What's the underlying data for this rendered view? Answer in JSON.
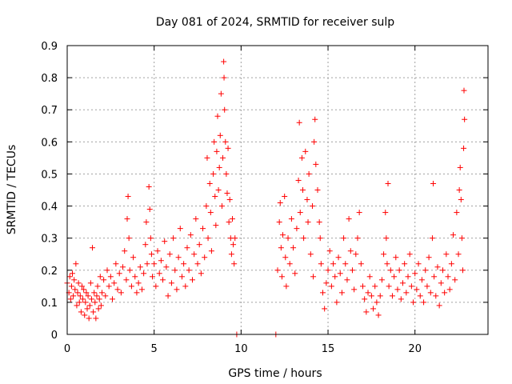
{
  "chart_data": {
    "type": "scatter",
    "title": "Day 081 of 2024, SRMTID for receiver sulp",
    "xlabel": "GPS time / hours",
    "ylabel": "SRMTID / TECUs",
    "xlim": [
      0,
      24.2
    ],
    "ylim": [
      0,
      0.9
    ],
    "xticks": [
      0,
      5,
      10,
      15,
      20
    ],
    "xtick_labels": [
      "0",
      "5",
      "10",
      "15",
      "20"
    ],
    "yticks": [
      0,
      0.1,
      0.2,
      0.3,
      0.4,
      0.5,
      0.6,
      0.7,
      0.8,
      0.9
    ],
    "ytick_labels": [
      "0",
      "0.1",
      "0.2",
      "0.3",
      "0.4",
      "0.5",
      "0.6",
      "0.7",
      "0.8",
      "0.9"
    ],
    "grid": true,
    "marker": "+",
    "color": "#ff0000",
    "series": [
      {
        "name": "SRMTID",
        "points": [
          [
            0.0,
            0.16
          ],
          [
            0.1,
            0.13
          ],
          [
            0.15,
            0.18
          ],
          [
            0.2,
            0.11
          ],
          [
            0.25,
            0.15
          ],
          [
            0.3,
            0.19
          ],
          [
            0.35,
            0.12
          ],
          [
            0.4,
            0.17
          ],
          [
            0.45,
            0.14
          ],
          [
            0.5,
            0.22
          ],
          [
            0.55,
            0.09
          ],
          [
            0.6,
            0.13
          ],
          [
            0.65,
            0.16
          ],
          [
            0.7,
            0.1
          ],
          [
            0.75,
            0.12
          ],
          [
            0.8,
            0.07
          ],
          [
            0.85,
            0.15
          ],
          [
            0.9,
            0.11
          ],
          [
            0.95,
            0.14
          ],
          [
            1.0,
            0.06
          ],
          [
            1.05,
            0.1
          ],
          [
            1.1,
            0.13
          ],
          [
            1.15,
            0.08
          ],
          [
            1.2,
            0.12
          ],
          [
            1.25,
            0.05
          ],
          [
            1.3,
            0.09
          ],
          [
            1.35,
            0.16
          ],
          [
            1.4,
            0.11
          ],
          [
            1.45,
            0.27
          ],
          [
            1.5,
            0.07
          ],
          [
            1.55,
            0.13
          ],
          [
            1.6,
            0.1
          ],
          [
            1.65,
            0.05
          ],
          [
            1.7,
            0.12
          ],
          [
            1.75,
            0.15
          ],
          [
            1.8,
            0.08
          ],
          [
            1.85,
            0.11
          ],
          [
            1.9,
            0.18
          ],
          [
            1.95,
            0.09
          ],
          [
            2.0,
            0.13
          ],
          [
            2.1,
            0.17
          ],
          [
            2.2,
            0.12
          ],
          [
            2.3,
            0.2
          ],
          [
            2.4,
            0.15
          ],
          [
            2.5,
            0.18
          ],
          [
            2.6,
            0.11
          ],
          [
            2.7,
            0.16
          ],
          [
            2.8,
            0.22
          ],
          [
            2.9,
            0.14
          ],
          [
            3.0,
            0.19
          ],
          [
            3.1,
            0.13
          ],
          [
            3.2,
            0.21
          ],
          [
            3.3,
            0.26
          ],
          [
            3.4,
            0.17
          ],
          [
            3.45,
            0.36
          ],
          [
            3.5,
            0.43
          ],
          [
            3.55,
            0.3
          ],
          [
            3.6,
            0.2
          ],
          [
            3.7,
            0.15
          ],
          [
            3.8,
            0.24
          ],
          [
            3.9,
            0.18
          ],
          [
            4.0,
            0.13
          ],
          [
            4.1,
            0.16
          ],
          [
            4.2,
            0.21
          ],
          [
            4.3,
            0.14
          ],
          [
            4.4,
            0.19
          ],
          [
            4.5,
            0.28
          ],
          [
            4.55,
            0.35
          ],
          [
            4.6,
            0.22
          ],
          [
            4.7,
            0.46
          ],
          [
            4.75,
            0.39
          ],
          [
            4.8,
            0.3
          ],
          [
            4.85,
            0.25
          ],
          [
            4.9,
            0.18
          ],
          [
            5.0,
            0.22
          ],
          [
            5.1,
            0.15
          ],
          [
            5.2,
            0.26
          ],
          [
            5.3,
            0.19
          ],
          [
            5.4,
            0.23
          ],
          [
            5.5,
            0.17
          ],
          [
            5.6,
            0.29
          ],
          [
            5.7,
            0.21
          ],
          [
            5.8,
            0.12
          ],
          [
            5.9,
            0.25
          ],
          [
            6.0,
            0.16
          ],
          [
            6.1,
            0.3
          ],
          [
            6.2,
            0.2
          ],
          [
            6.3,
            0.14
          ],
          [
            6.4,
            0.24
          ],
          [
            6.5,
            0.33
          ],
          [
            6.6,
            0.18
          ],
          [
            6.7,
            0.22
          ],
          [
            6.8,
            0.15
          ],
          [
            6.9,
            0.27
          ],
          [
            7.0,
            0.2
          ],
          [
            7.1,
            0.31
          ],
          [
            7.2,
            0.17
          ],
          [
            7.3,
            0.25
          ],
          [
            7.4,
            0.36
          ],
          [
            7.5,
            0.22
          ],
          [
            7.6,
            0.28
          ],
          [
            7.7,
            0.19
          ],
          [
            7.8,
            0.33
          ],
          [
            7.9,
            0.24
          ],
          [
            8.0,
            0.4
          ],
          [
            8.05,
            0.55
          ],
          [
            8.1,
            0.3
          ],
          [
            8.2,
            0.47
          ],
          [
            8.25,
            0.38
          ],
          [
            8.3,
            0.26
          ],
          [
            8.4,
            0.5
          ],
          [
            8.45,
            0.6
          ],
          [
            8.5,
            0.43
          ],
          [
            8.55,
            0.34
          ],
          [
            8.6,
            0.57
          ],
          [
            8.65,
            0.68
          ],
          [
            8.7,
            0.45
          ],
          [
            8.75,
            0.52
          ],
          [
            8.8,
            0.62
          ],
          [
            8.85,
            0.75
          ],
          [
            8.9,
            0.4
          ],
          [
            8.95,
            0.55
          ],
          [
            9.0,
            0.85
          ],
          [
            9.02,
            0.8
          ],
          [
            9.05,
            0.7
          ],
          [
            9.1,
            0.6
          ],
          [
            9.15,
            0.5
          ],
          [
            9.2,
            0.44
          ],
          [
            9.25,
            0.58
          ],
          [
            9.3,
            0.35
          ],
          [
            9.35,
            0.42
          ],
          [
            9.4,
            0.3
          ],
          [
            9.45,
            0.25
          ],
          [
            9.5,
            0.36
          ],
          [
            9.55,
            0.28
          ],
          [
            9.6,
            0.22
          ],
          [
            9.65,
            0.3
          ],
          [
            9.75,
            0.0
          ],
          [
            12.0,
            0.0
          ],
          [
            12.1,
            0.2
          ],
          [
            12.2,
            0.35
          ],
          [
            12.25,
            0.41
          ],
          [
            12.3,
            0.27
          ],
          [
            12.35,
            0.18
          ],
          [
            12.4,
            0.31
          ],
          [
            12.5,
            0.43
          ],
          [
            12.55,
            0.24
          ],
          [
            12.6,
            0.15
          ],
          [
            12.7,
            0.3
          ],
          [
            12.8,
            0.22
          ],
          [
            12.9,
            0.36
          ],
          [
            13.0,
            0.27
          ],
          [
            13.1,
            0.19
          ],
          [
            13.2,
            0.33
          ],
          [
            13.3,
            0.48
          ],
          [
            13.35,
            0.66
          ],
          [
            13.4,
            0.38
          ],
          [
            13.5,
            0.55
          ],
          [
            13.55,
            0.45
          ],
          [
            13.6,
            0.3
          ],
          [
            13.7,
            0.57
          ],
          [
            13.8,
            0.42
          ],
          [
            13.85,
            0.35
          ],
          [
            13.9,
            0.5
          ],
          [
            14.0,
            0.25
          ],
          [
            14.1,
            0.4
          ],
          [
            14.15,
            0.18
          ],
          [
            14.2,
            0.6
          ],
          [
            14.25,
            0.67
          ],
          [
            14.3,
            0.53
          ],
          [
            14.4,
            0.45
          ],
          [
            14.5,
            0.35
          ],
          [
            14.55,
            0.3
          ],
          [
            14.6,
            0.22
          ],
          [
            14.7,
            0.13
          ],
          [
            14.8,
            0.08
          ],
          [
            14.9,
            0.16
          ],
          [
            15.0,
            0.2
          ],
          [
            15.1,
            0.26
          ],
          [
            15.2,
            0.15
          ],
          [
            15.3,
            0.22
          ],
          [
            15.4,
            0.18
          ],
          [
            15.5,
            0.1
          ],
          [
            15.6,
            0.24
          ],
          [
            15.7,
            0.19
          ],
          [
            15.8,
            0.13
          ],
          [
            15.9,
            0.3
          ],
          [
            16.0,
            0.22
          ],
          [
            16.1,
            0.17
          ],
          [
            16.2,
            0.36
          ],
          [
            16.3,
            0.26
          ],
          [
            16.4,
            0.2
          ],
          [
            16.5,
            0.14
          ],
          [
            16.6,
            0.25
          ],
          [
            16.7,
            0.3
          ],
          [
            16.8,
            0.38
          ],
          [
            16.9,
            0.22
          ],
          [
            17.0,
            0.15
          ],
          [
            17.1,
            0.11
          ],
          [
            17.2,
            0.07
          ],
          [
            17.3,
            0.13
          ],
          [
            17.4,
            0.18
          ],
          [
            17.5,
            0.12
          ],
          [
            17.6,
            0.08
          ],
          [
            17.7,
            0.15
          ],
          [
            17.8,
            0.1
          ],
          [
            17.9,
            0.06
          ],
          [
            18.0,
            0.12
          ],
          [
            18.1,
            0.17
          ],
          [
            18.2,
            0.25
          ],
          [
            18.3,
            0.38
          ],
          [
            18.35,
            0.3
          ],
          [
            18.4,
            0.22
          ],
          [
            18.45,
            0.47
          ],
          [
            18.5,
            0.15
          ],
          [
            18.6,
            0.2
          ],
          [
            18.7,
            0.12
          ],
          [
            18.8,
            0.18
          ],
          [
            18.9,
            0.24
          ],
          [
            19.0,
            0.14
          ],
          [
            19.1,
            0.2
          ],
          [
            19.2,
            0.11
          ],
          [
            19.3,
            0.16
          ],
          [
            19.4,
            0.22
          ],
          [
            19.5,
            0.13
          ],
          [
            19.6,
            0.18
          ],
          [
            19.7,
            0.25
          ],
          [
            19.8,
            0.15
          ],
          [
            19.9,
            0.1
          ],
          [
            20.0,
            0.19
          ],
          [
            20.1,
            0.14
          ],
          [
            20.2,
            0.22
          ],
          [
            20.3,
            0.12
          ],
          [
            20.4,
            0.17
          ],
          [
            20.5,
            0.1
          ],
          [
            20.6,
            0.2
          ],
          [
            20.7,
            0.15
          ],
          [
            20.8,
            0.24
          ],
          [
            20.9,
            0.13
          ],
          [
            21.0,
            0.3
          ],
          [
            21.05,
            0.47
          ],
          [
            21.1,
            0.18
          ],
          [
            21.2,
            0.12
          ],
          [
            21.3,
            0.21
          ],
          [
            21.4,
            0.09
          ],
          [
            21.5,
            0.16
          ],
          [
            21.6,
            0.2
          ],
          [
            21.7,
            0.13
          ],
          [
            21.8,
            0.25
          ],
          [
            21.9,
            0.18
          ],
          [
            22.0,
            0.14
          ],
          [
            22.1,
            0.22
          ],
          [
            22.2,
            0.31
          ],
          [
            22.3,
            0.17
          ],
          [
            22.4,
            0.38
          ],
          [
            22.5,
            0.25
          ],
          [
            22.55,
            0.45
          ],
          [
            22.6,
            0.52
          ],
          [
            22.65,
            0.42
          ],
          [
            22.7,
            0.3
          ],
          [
            22.75,
            0.2
          ],
          [
            22.8,
            0.58
          ],
          [
            22.82,
            0.76
          ],
          [
            22.85,
            0.67
          ]
        ]
      }
    ]
  }
}
